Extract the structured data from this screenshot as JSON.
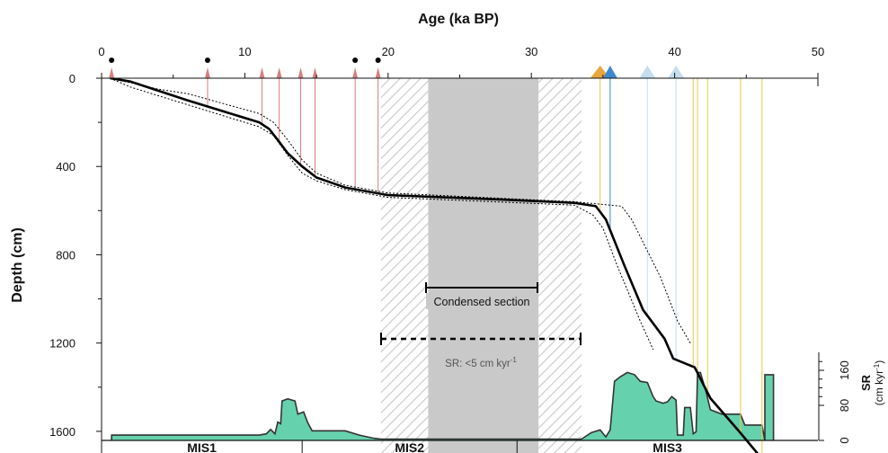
{
  "chart_data": {
    "type": "line",
    "title": "",
    "xlabel": "Age (ka BP)",
    "ylabel": "Depth (cm)",
    "x_ticks": [
      0,
      10,
      20,
      30,
      40,
      50
    ],
    "y_ticks": [
      0,
      400,
      800,
      1200,
      1600
    ],
    "xlim": [
      0,
      50
    ],
    "ylim": [
      1800,
      0
    ],
    "grid": false,
    "age_model": {
      "median": [
        [
          0.6,
          0
        ],
        [
          2,
          15
        ],
        [
          6,
          100
        ],
        [
          11,
          200
        ],
        [
          11.7,
          230
        ],
        [
          12.3,
          280
        ],
        [
          13,
          340
        ],
        [
          14,
          400
        ],
        [
          15,
          450
        ],
        [
          17,
          495
        ],
        [
          20,
          530
        ],
        [
          28,
          550
        ],
        [
          33,
          565
        ],
        [
          34.5,
          580
        ],
        [
          35.2,
          640
        ],
        [
          36.5,
          850
        ],
        [
          37.8,
          1050
        ],
        [
          39.3,
          1180
        ],
        [
          39.9,
          1270
        ],
        [
          41.4,
          1310
        ],
        [
          42.5,
          1450
        ],
        [
          44.5,
          1600
        ],
        [
          46.3,
          1740
        ],
        [
          46.7,
          1800
        ]
      ],
      "upper_ci": [
        [
          0.6,
          0
        ],
        [
          4,
          50
        ],
        [
          6,
          70
        ],
        [
          11,
          160
        ],
        [
          12,
          200
        ],
        [
          13,
          280
        ],
        [
          14,
          370
        ],
        [
          15,
          430
        ],
        [
          17,
          485
        ],
        [
          20,
          520
        ],
        [
          33,
          560
        ],
        [
          36.3,
          580
        ],
        [
          37,
          640
        ],
        [
          39,
          900
        ],
        [
          40.2,
          1100
        ],
        [
          41.1,
          1200
        ]
      ],
      "lower_ci": [
        [
          0.6,
          0
        ],
        [
          2,
          40
        ],
        [
          6,
          120
        ],
        [
          11,
          220
        ],
        [
          12,
          260
        ],
        [
          13,
          350
        ],
        [
          14,
          430
        ],
        [
          15,
          465
        ],
        [
          17,
          505
        ],
        [
          20,
          540
        ],
        [
          33,
          575
        ],
        [
          34.3,
          620
        ],
        [
          35,
          680
        ],
        [
          36,
          850
        ],
        [
          37.6,
          1100
        ],
        [
          38.5,
          1230
        ]
      ]
    },
    "dating_markers": {
      "red": [
        0.7,
        7.4,
        11.2,
        12.4,
        13.9,
        14.9,
        17.7,
        19.3
      ],
      "black_dots": [
        0.7,
        7.4,
        17.7,
        19.3
      ],
      "orange": [
        34.8,
        41.3,
        41.6,
        42.3,
        44.6,
        46.1
      ],
      "dark_blue": [
        35.5
      ],
      "light_blue": [
        38.1,
        40.1
      ]
    },
    "gap_intervals": {
      "hatched": [
        [
          19.5,
          22.8
        ],
        [
          30.5,
          33.5
        ]
      ],
      "grey": [
        22.8,
        30.5
      ]
    },
    "annotations": {
      "condensed": "Condensed section",
      "sr": "SR: <5 cm kyr"
    },
    "sr_panel": {
      "label": "SR",
      "unit": "(cm kyr",
      "axis_ticks": [
        0,
        80,
        160
      ],
      "ylim": [
        0,
        180
      ],
      "series": [
        [
          0.7,
          0
        ],
        [
          0.7,
          12
        ],
        [
          10,
          12
        ],
        [
          11,
          12
        ],
        [
          11.5,
          15
        ],
        [
          11.8,
          25
        ],
        [
          12.1,
          15
        ],
        [
          12.3,
          42
        ],
        [
          12.5,
          38
        ],
        [
          12.6,
          90
        ],
        [
          13,
          95
        ],
        [
          13.5,
          90
        ],
        [
          13.7,
          60
        ],
        [
          14.1,
          65
        ],
        [
          14.4,
          40
        ],
        [
          14.7,
          22
        ],
        [
          15.5,
          22
        ],
        [
          17,
          22
        ],
        [
          18,
          12
        ],
        [
          19,
          5
        ],
        [
          19.5,
          3
        ],
        [
          33.5,
          3
        ],
        [
          34.2,
          18
        ],
        [
          34.8,
          24
        ],
        [
          35.2,
          8
        ],
        [
          35.5,
          24
        ],
        [
          35.8,
          135
        ],
        [
          36.2,
          145
        ],
        [
          36.7,
          155
        ],
        [
          37.2,
          150
        ],
        [
          37.6,
          135
        ],
        [
          38.1,
          132
        ],
        [
          38.5,
          100
        ],
        [
          38.7,
          90
        ],
        [
          39.2,
          85
        ],
        [
          39.5,
          88
        ],
        [
          39.8,
          100
        ],
        [
          40.1,
          92
        ],
        [
          40.2,
          12
        ],
        [
          40.6,
          12
        ],
        [
          40.7,
          75
        ],
        [
          41.1,
          75
        ],
        [
          41.3,
          15
        ],
        [
          41.5,
          20
        ],
        [
          41.6,
          155
        ],
        [
          41.8,
          155
        ],
        [
          42.2,
          110
        ],
        [
          42.5,
          70
        ],
        [
          43.3,
          60
        ],
        [
          44.6,
          60
        ],
        [
          44.9,
          35
        ],
        [
          46.1,
          35
        ],
        [
          46.3,
          0
        ],
        [
          46.3,
          150
        ],
        [
          46.9,
          150
        ],
        [
          46.9,
          0
        ]
      ]
    },
    "mis_labels": [
      "MIS1",
      "MIS2",
      "MIS3"
    ],
    "mis_boundaries": [
      14,
      29
    ]
  },
  "colors": {
    "median": "#000000",
    "ci": "#000000",
    "red_marker": "#d77e7e",
    "orange": "#e8a53f",
    "orange_line": "#f2c44a",
    "dark_blue": "#3a8ad0",
    "light_blue": "#c4ddef",
    "hatch": "#c8c8c8",
    "grey_band": "#c9c9c9",
    "sr_fill": "#66d1ad",
    "sr_line": "#333333"
  }
}
